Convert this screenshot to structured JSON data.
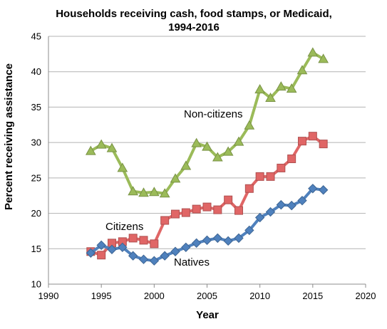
{
  "chart_data": {
    "type": "line",
    "title_lines": [
      "Households receiving cash, food stamps, or Medicaid,",
      "1994-2016"
    ],
    "xlabel": "Year",
    "ylabel": "Percent receiving assistance",
    "xlim": [
      1990,
      2020
    ],
    "ylim": [
      10,
      45
    ],
    "xticks": [
      "1990",
      "1995",
      "2000",
      "2005",
      "2010",
      "2015",
      "2020"
    ],
    "yticks": [
      "10",
      "15",
      "20",
      "25",
      "30",
      "35",
      "40",
      "45"
    ],
    "grid": "horizontal",
    "legend": "none (series labeled directly on chart)",
    "series": [
      {
        "name": "Non-citizens",
        "color": "#9BBB59",
        "marker": "triangle",
        "x": [
          1994,
          1995,
          1996,
          1997,
          1998,
          1999,
          2000,
          2001,
          2002,
          2003,
          2004,
          2005,
          2006,
          2007,
          2008,
          2009,
          2010,
          2011,
          2012,
          2013,
          2014,
          2015,
          2016
        ],
        "values": [
          28.8,
          29.7,
          29.2,
          26.4,
          23.1,
          22.9,
          23.0,
          22.8,
          24.9,
          26.7,
          29.9,
          29.4,
          27.9,
          28.7,
          30.1,
          32.4,
          37.5,
          36.3,
          37.9,
          37.6,
          40.2,
          42.7,
          41.8
        ]
      },
      {
        "name": "Citizens",
        "color": "#E06666",
        "marker": "square",
        "x": [
          1994,
          1995,
          1996,
          1997,
          1998,
          1999,
          2000,
          2001,
          2002,
          2003,
          2004,
          2005,
          2006,
          2007,
          2008,
          2009,
          2010,
          2011,
          2012,
          2013,
          2014,
          2015,
          2016
        ],
        "values": [
          14.6,
          14.1,
          15.8,
          16.0,
          16.5,
          16.2,
          15.7,
          19.0,
          19.9,
          20.1,
          20.6,
          20.9,
          20.5,
          21.9,
          20.4,
          23.5,
          25.2,
          25.2,
          26.4,
          27.7,
          30.2,
          30.9,
          29.8
        ]
      },
      {
        "name": "Natives",
        "color": "#4F81BD",
        "marker": "diamond",
        "x": [
          1994,
          1995,
          1996,
          1997,
          1998,
          1999,
          2000,
          2001,
          2002,
          2003,
          2004,
          2005,
          2006,
          2007,
          2008,
          2009,
          2010,
          2011,
          2012,
          2013,
          2014,
          2015,
          2016
        ],
        "values": [
          14.4,
          15.5,
          14.9,
          15.2,
          14.0,
          13.5,
          13.3,
          14.0,
          14.6,
          15.2,
          15.8,
          16.2,
          16.5,
          16.1,
          16.5,
          17.6,
          19.4,
          20.2,
          21.2,
          21.1,
          21.8,
          23.5,
          23.3
        ]
      }
    ],
    "annotations": [
      "Non-citizens",
      "Citizens",
      "Natives"
    ]
  }
}
